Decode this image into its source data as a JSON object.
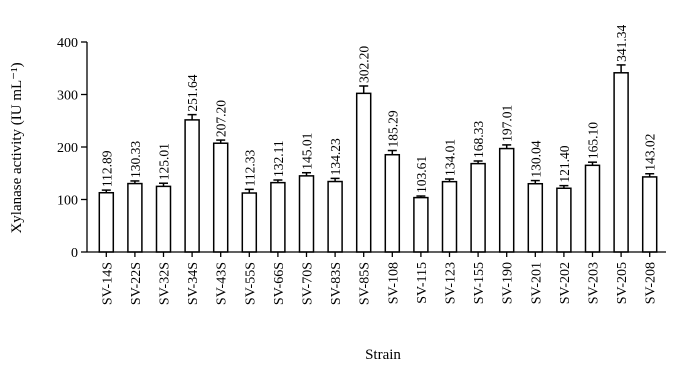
{
  "chart_data": {
    "type": "bar",
    "xlabel": "Strain",
    "ylabel": "Xylanase activity (IU mL⁻¹)",
    "ylim": [
      0,
      400
    ],
    "yticks": [
      0,
      100,
      200,
      300,
      400
    ],
    "grid": false,
    "legend": "none",
    "error_bars": true,
    "bar_fill": "#ffffff",
    "bar_stroke": "#000000",
    "categories": [
      "SV-14S",
      "SV-22S",
      "SV-32S",
      "SV-34S",
      "SV-43S",
      "SV-55S",
      "SV-66S",
      "SV-70S",
      "SV-83S",
      "SV-85S",
      "SV-108",
      "SV-115",
      "SV-123",
      "SV-155",
      "SV-190",
      "SV-201",
      "SV-202",
      "SV-203",
      "SV-205",
      "SV-208"
    ],
    "values": [
      112.89,
      130.33,
      125.01,
      251.64,
      207.2,
      112.33,
      132.11,
      145.01,
      134.23,
      302.2,
      185.29,
      103.61,
      134.01,
      168.33,
      197.01,
      130.04,
      121.4,
      165.1,
      341.34,
      143.02
    ],
    "value_labels": [
      "112.89",
      "130.33",
      "125.01",
      "251.64",
      "207.20",
      "112.33",
      "132.11",
      "145.01",
      "134.23",
      "302.20",
      "185.29",
      "103.61",
      "134.01",
      "168.33",
      "197.01",
      "130.04",
      "121.40",
      "165.10",
      "341.34",
      "143.02"
    ],
    "errors": [
      5,
      5,
      6,
      10,
      6,
      7,
      5,
      6,
      6,
      14,
      8,
      3,
      5,
      5,
      7,
      6,
      5,
      6,
      15,
      6
    ]
  }
}
